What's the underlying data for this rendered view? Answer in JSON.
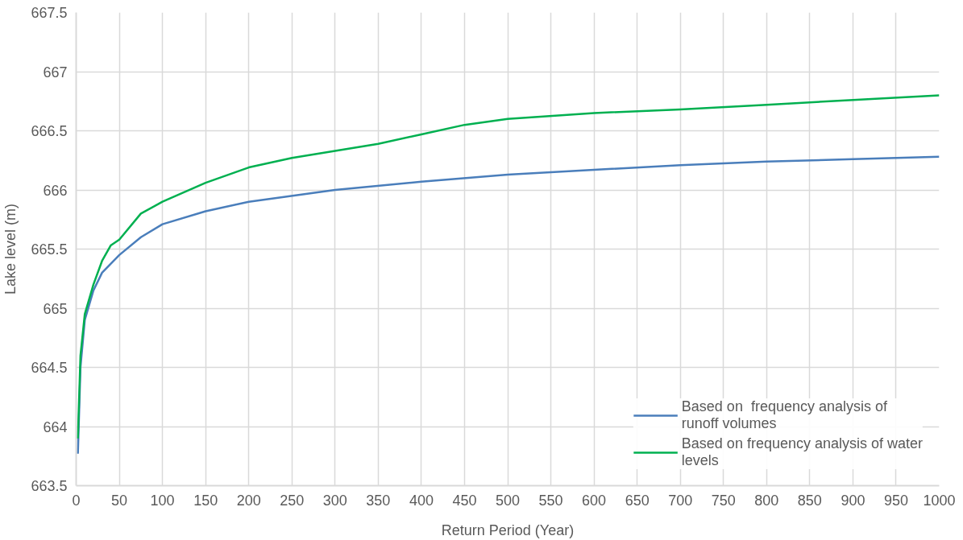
{
  "chart_data": {
    "type": "line",
    "xlabel": "Return Period (Year)",
    "ylabel": "Lake level (m)",
    "xlim": [
      0,
      1000
    ],
    "ylim": [
      663.5,
      667.5
    ],
    "xticks": [
      0,
      50,
      100,
      150,
      200,
      250,
      300,
      350,
      400,
      450,
      500,
      550,
      600,
      650,
      700,
      750,
      800,
      850,
      900,
      950,
      1000
    ],
    "yticks": [
      663.5,
      664,
      664.5,
      665,
      665.5,
      666,
      666.5,
      667,
      667.5
    ],
    "grid": true,
    "legend": "bottom right",
    "line_style": "solid",
    "series": [
      {
        "name": "Based on  frequency analysis of runoff volumes",
        "color": "#4a7ebb",
        "x": [
          2,
          5,
          10,
          20,
          30,
          50,
          75,
          100,
          150,
          200,
          300,
          400,
          500,
          600,
          700,
          800,
          900,
          1000
        ],
        "values": [
          663.77,
          664.5,
          664.9,
          665.15,
          665.3,
          665.45,
          665.6,
          665.71,
          665.82,
          665.9,
          666.0,
          666.07,
          666.13,
          666.17,
          666.21,
          666.24,
          666.26,
          666.28
        ]
      },
      {
        "name": "Based on frequency analysis of water levels",
        "color": "#00b050",
        "x": [
          2,
          5,
          10,
          20,
          30,
          40,
          50,
          75,
          100,
          150,
          200,
          250,
          300,
          350,
          400,
          450,
          500,
          600,
          700,
          800,
          900,
          1000
        ],
        "values": [
          663.9,
          664.6,
          664.95,
          665.2,
          665.4,
          665.53,
          665.58,
          665.8,
          665.9,
          666.06,
          666.19,
          666.27,
          666.33,
          666.39,
          666.47,
          666.55,
          666.6,
          666.65,
          666.68,
          666.72,
          666.76,
          666.8
        ]
      }
    ]
  }
}
